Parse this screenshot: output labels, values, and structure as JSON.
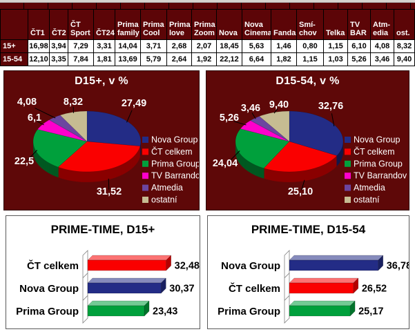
{
  "table": {
    "columns": [
      "",
      "ČT1",
      "ČT2",
      "ČT\nSport",
      "ČT24",
      "Prima\nfamily",
      "Prima\nCool",
      "Prima\nlove",
      "Prima\nZoom",
      "Nova",
      "Nova\nCinema",
      "Fanda",
      "Smí-\nchov",
      "Telka",
      "TV\nBAR",
      "Atm-\nedia",
      "ost."
    ],
    "rows": [
      {
        "label": "15+",
        "values": [
          "16,98",
          "3,94",
          "7,29",
          "3,31",
          "14,04",
          "3,71",
          "2,68",
          "2,07",
          "18,45",
          "5,63",
          "1,46",
          "0,80",
          "1,15",
          "6,10",
          "4,08",
          "8,32"
        ]
      },
      {
        "label": "15-54",
        "values": [
          "12,10",
          "3,35",
          "7,84",
          "1,81",
          "13,69",
          "5,79",
          "2,64",
          "1,92",
          "22,12",
          "6,64",
          "1,82",
          "1,15",
          "1,03",
          "5,26",
          "3,46",
          "9,40"
        ]
      }
    ]
  },
  "colors": {
    "panel_maroon": "#5e0808",
    "table_header_maroon": "#5c0507",
    "nova_blue": "#232c86",
    "ct_red": "#fa0000",
    "prima_green": "#00a03c",
    "barrandov_magenta": "#ff00cc",
    "atmedia_purple": "#6c46a0",
    "ostatni_tan": "#c6bc92"
  },
  "chart_data": [
    {
      "type": "pie",
      "title": "D15+, v %",
      "legend_position": "right",
      "labels": [
        "Nova Group",
        "ČT celkem",
        "Prima Group",
        "TV Barrandov",
        "Atmedia",
        "ostatní"
      ],
      "values": [
        27.49,
        31.52,
        22.5,
        6.1,
        4.08,
        8.32
      ],
      "display": [
        "27,49",
        "31,52",
        "22,5",
        "6,1",
        "4,08",
        "8,32"
      ],
      "colors": [
        "#232c86",
        "#fa0000",
        "#00a03c",
        "#ff00cc",
        "#6c46a0",
        "#c6bc92"
      ],
      "label_pos": [
        [
          188,
          46
        ],
        [
          152,
          174
        ],
        [
          29,
          130
        ],
        [
          44,
          67
        ],
        [
          33,
          44
        ],
        [
          100,
          44
        ]
      ]
    },
    {
      "type": "pie",
      "title": "D15-54, v %",
      "legend_position": "right",
      "labels": [
        "Nova Group",
        "ČT celkem",
        "Prima Group",
        "TV Barrandov",
        "Atmedia",
        "ostatní"
      ],
      "values": [
        32.76,
        25.1,
        24.04,
        5.26,
        3.46,
        9.4
      ],
      "display": [
        "32,76",
        "25,10",
        "24,04",
        "5,26",
        "3,46",
        "9,40"
      ],
      "colors": [
        "#232c86",
        "#fa0000",
        "#00a03c",
        "#ff00cc",
        "#6c46a0",
        "#c6bc92"
      ],
      "label_pos": [
        [
          180,
          50
        ],
        [
          136,
          174
        ],
        [
          27,
          133
        ],
        [
          33,
          67
        ],
        [
          64,
          53
        ],
        [
          105,
          48
        ]
      ]
    },
    {
      "type": "bar",
      "title": "PRIME-TIME, D15+",
      "categories": [
        "ČT celkem",
        "Nova Group",
        "Prima Group"
      ],
      "values": [
        32.48,
        30.37,
        23.43
      ],
      "display": [
        "32,48",
        "30,37",
        "23,43"
      ],
      "colors": [
        "#fa0000",
        "#232c86",
        "#00a03c"
      ],
      "xlim": [
        0,
        40
      ]
    },
    {
      "type": "bar",
      "title": "PRIME-TIME, D15-54",
      "categories": [
        "Nova Group",
        "ČT celkem",
        "Prima Group"
      ],
      "values": [
        36.78,
        26.52,
        25.17
      ],
      "display": [
        "36,78",
        "26,52",
        "25,17"
      ],
      "colors": [
        "#232c86",
        "#fa0000",
        "#00a03c"
      ],
      "xlim": [
        0,
        40
      ]
    }
  ]
}
